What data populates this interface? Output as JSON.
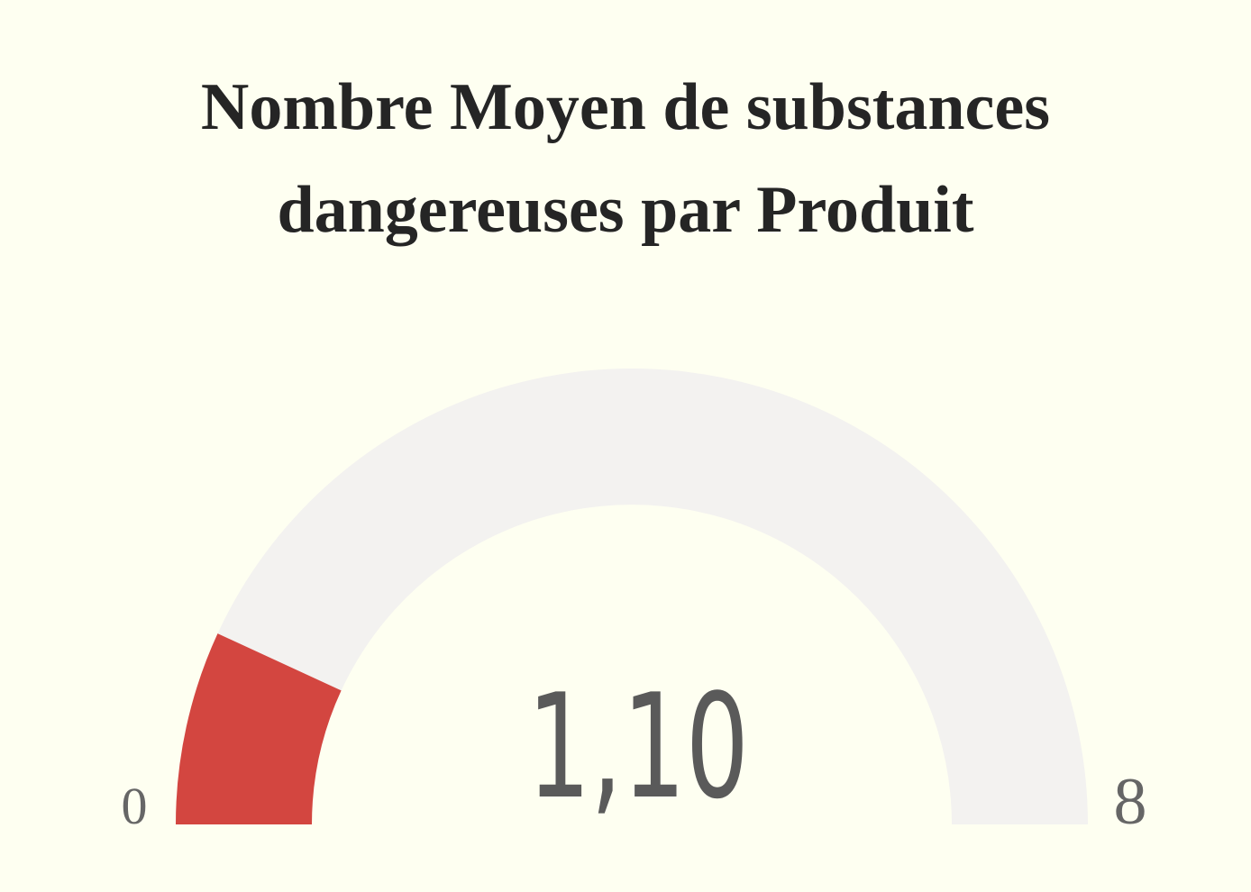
{
  "chart_data": {
    "type": "gauge",
    "title_lines": [
      "Nombre Moyen de substances",
      "dangereuses par Produit"
    ],
    "min": 0,
    "max": 8,
    "value": 1.1,
    "value_label": "1,10",
    "min_label": "0",
    "max_label": "8",
    "fill_color": "#d34640",
    "track_color": "#f3f2f0"
  }
}
